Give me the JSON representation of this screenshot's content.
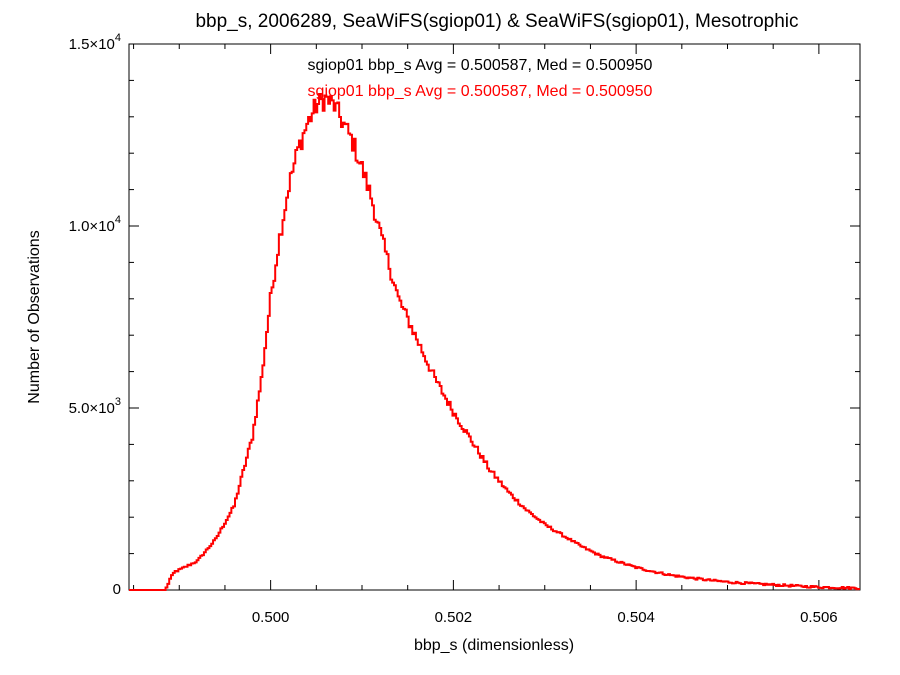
{
  "colors": {
    "background": "#ffffff",
    "axes": "#000000",
    "series_primary": "#000000",
    "series_secondary": "#ff0000"
  },
  "chart_data": {
    "type": "histogram",
    "title": "bbp_s, 2006289, SeaWiFS(sgiop01) & SeaWiFS(sgiop01), Mesotrophic",
    "xlabel": "bbp_s (dimensionless)",
    "ylabel": "Number of Observations",
    "xlim": [
      0.49845,
      0.50645
    ],
    "ylim": [
      0,
      15000
    ],
    "grid": false,
    "x_ticks": [
      {
        "value": 0.5,
        "label": "0.500"
      },
      {
        "value": 0.502,
        "label": "0.502"
      },
      {
        "value": 0.504,
        "label": "0.504"
      },
      {
        "value": 0.506,
        "label": "0.506"
      }
    ],
    "x_minor_step": 0.0005,
    "y_ticks": [
      {
        "value": 0,
        "label": "0",
        "exp": ""
      },
      {
        "value": 5000,
        "label": "5.0×10",
        "exp": "3"
      },
      {
        "value": 10000,
        "label": "1.0×10",
        "exp": "4"
      },
      {
        "value": 15000,
        "label": "1.5×10",
        "exp": "4"
      }
    ],
    "y_minor_step": 1000,
    "annotations": [
      {
        "text": "sgiop01 bbp_s Avg = 0.500587, Med = 0.500950",
        "color": "#000000"
      },
      {
        "text": "sgiop01 bbp_s Avg = 0.500587, Med = 0.500950",
        "color": "#ff0000"
      }
    ],
    "series": [
      {
        "color": "#ff0000",
        "profile": {
          "x": [
            0.49845,
            0.49885,
            0.4989,
            0.49895,
            0.499,
            0.4992,
            0.4994,
            0.4996,
            0.4998,
            0.4999,
            0.5,
            0.5001,
            0.5002,
            0.5003,
            0.5004,
            0.5005,
            0.5006,
            0.5007,
            0.5008,
            0.5009,
            0.501,
            0.5011,
            0.5012,
            0.5013,
            0.5014,
            0.5016,
            0.5018,
            0.502,
            0.5022,
            0.5024,
            0.5026,
            0.5028,
            0.503,
            0.5032,
            0.5034,
            0.5036,
            0.5038,
            0.504,
            0.5042,
            0.5044,
            0.5046,
            0.5048,
            0.505,
            0.5053,
            0.5056,
            0.506,
            0.50645
          ],
          "y": [
            0,
            0,
            300,
            500,
            550,
            800,
            1400,
            2300,
            4200,
            5800,
            8000,
            9700,
            11100,
            12100,
            12800,
            13300,
            13500,
            13300,
            12800,
            12300,
            11600,
            10800,
            9800,
            8900,
            8000,
            6900,
            5800,
            4900,
            4100,
            3300,
            2700,
            2200,
            1800,
            1500,
            1200,
            950,
            780,
            620,
            500,
            400,
            330,
            270,
            220,
            170,
            130,
            80,
            50
          ]
        }
      }
    ]
  }
}
